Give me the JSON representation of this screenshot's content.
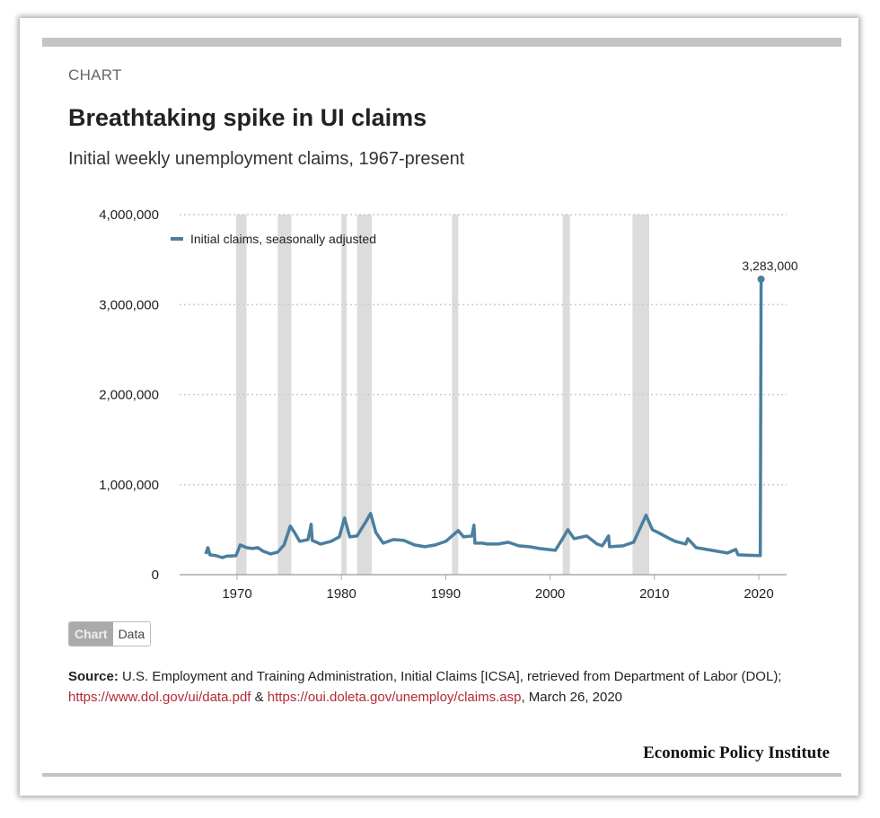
{
  "header": {
    "kicker": "CHART",
    "title": "Breathtaking spike in UI claims",
    "subtitle": "Initial weekly unemployment claims, 1967-present"
  },
  "toggle": {
    "chart_label": "Chart",
    "data_label": "Data"
  },
  "source": {
    "label": "Source:",
    "text1": " U.S. Employment and Training Administration, Initial Claims [ICSA], retrieved from Department of Labor (DOL); ",
    "link1": "https://www.dol.gov/ui/data.pdf",
    "amp": " & ",
    "link2": "https://oui.doleta.gov/unemploy/claims.asp",
    "text2": ", March 26, 2020"
  },
  "logo": "Economic Policy Institute",
  "colors": {
    "line": "#4a7f9f",
    "recession": "#dcdcdc",
    "link": "#b22a36"
  },
  "chart_data": {
    "type": "line",
    "title": "Breathtaking spike in UI claims",
    "xlabel": "",
    "ylabel": "",
    "xlim": [
      1966,
      2023
    ],
    "ylim": [
      0,
      4000000
    ],
    "yticks": [
      0,
      1000000,
      2000000,
      3000000,
      4000000
    ],
    "ytick_labels": [
      "0",
      "1,000,000",
      "2,000,000",
      "3,000,000",
      "4,000,000"
    ],
    "xticks": [
      1970,
      1980,
      1990,
      2000,
      2010,
      2020
    ],
    "xtick_labels": [
      "1970",
      "1980",
      "1990",
      "2000",
      "2010",
      "2020"
    ],
    "grid": "horizontal dotted",
    "legend": {
      "entries": [
        "Initial claims, seasonally adjusted"
      ],
      "placement": "top-left"
    },
    "annotation": {
      "label": "3,283,000",
      "x": 2020.22,
      "y": 3283000
    },
    "recessions": [
      [
        1969.9,
        1970.9
      ],
      [
        1973.9,
        1975.2
      ],
      [
        1980.0,
        1980.5
      ],
      [
        1981.5,
        1982.9
      ],
      [
        1990.6,
        1991.2
      ],
      [
        2001.2,
        2001.9
      ],
      [
        2007.9,
        2009.5
      ]
    ],
    "series": [
      {
        "name": "Initial claims, seasonally adjusted",
        "points": [
          [
            1967,
            230000
          ],
          [
            1967.2,
            300000
          ],
          [
            1967.4,
            220000
          ],
          [
            1968,
            210000
          ],
          [
            1968.6,
            190000
          ],
          [
            1969,
            205000
          ],
          [
            1969.9,
            210000
          ],
          [
            1970.3,
            330000
          ],
          [
            1970.9,
            300000
          ],
          [
            1971.5,
            290000
          ],
          [
            1972,
            300000
          ],
          [
            1972.5,
            260000
          ],
          [
            1973.2,
            230000
          ],
          [
            1973.9,
            250000
          ],
          [
            1974.5,
            330000
          ],
          [
            1975.1,
            540000
          ],
          [
            1975.5,
            470000
          ],
          [
            1976,
            370000
          ],
          [
            1976.8,
            390000
          ],
          [
            1977.1,
            560000
          ],
          [
            1977.2,
            380000
          ],
          [
            1978,
            340000
          ],
          [
            1979,
            370000
          ],
          [
            1979.8,
            420000
          ],
          [
            1980.3,
            630000
          ],
          [
            1980.8,
            420000
          ],
          [
            1981.5,
            430000
          ],
          [
            1982.4,
            600000
          ],
          [
            1982.8,
            680000
          ],
          [
            1983.3,
            470000
          ],
          [
            1984,
            350000
          ],
          [
            1985,
            390000
          ],
          [
            1986,
            380000
          ],
          [
            1987,
            330000
          ],
          [
            1988,
            310000
          ],
          [
            1989,
            330000
          ],
          [
            1990,
            370000
          ],
          [
            1991.2,
            490000
          ],
          [
            1991.7,
            420000
          ],
          [
            1992.5,
            430000
          ],
          [
            1992.7,
            550000
          ],
          [
            1992.8,
            350000
          ],
          [
            1993.5,
            350000
          ],
          [
            1994,
            340000
          ],
          [
            1995,
            340000
          ],
          [
            1996,
            360000
          ],
          [
            1997,
            320000
          ],
          [
            1998,
            310000
          ],
          [
            1999,
            290000
          ],
          [
            2000.5,
            270000
          ],
          [
            2001.2,
            400000
          ],
          [
            2001.7,
            500000
          ],
          [
            2002.3,
            400000
          ],
          [
            2003.5,
            430000
          ],
          [
            2004.5,
            340000
          ],
          [
            2005,
            320000
          ],
          [
            2005.6,
            430000
          ],
          [
            2005.7,
            310000
          ],
          [
            2007,
            320000
          ],
          [
            2008,
            360000
          ],
          [
            2009.2,
            660000
          ],
          [
            2009.8,
            500000
          ],
          [
            2010.5,
            460000
          ],
          [
            2011.3,
            410000
          ],
          [
            2012,
            370000
          ],
          [
            2013,
            340000
          ],
          [
            2013.2,
            400000
          ],
          [
            2014,
            300000
          ],
          [
            2015,
            280000
          ],
          [
            2016,
            260000
          ],
          [
            2017,
            240000
          ],
          [
            2017.8,
            280000
          ],
          [
            2018,
            220000
          ],
          [
            2019,
            215000
          ],
          [
            2020.15,
            211000
          ],
          [
            2020.22,
            3283000
          ]
        ]
      }
    ]
  }
}
